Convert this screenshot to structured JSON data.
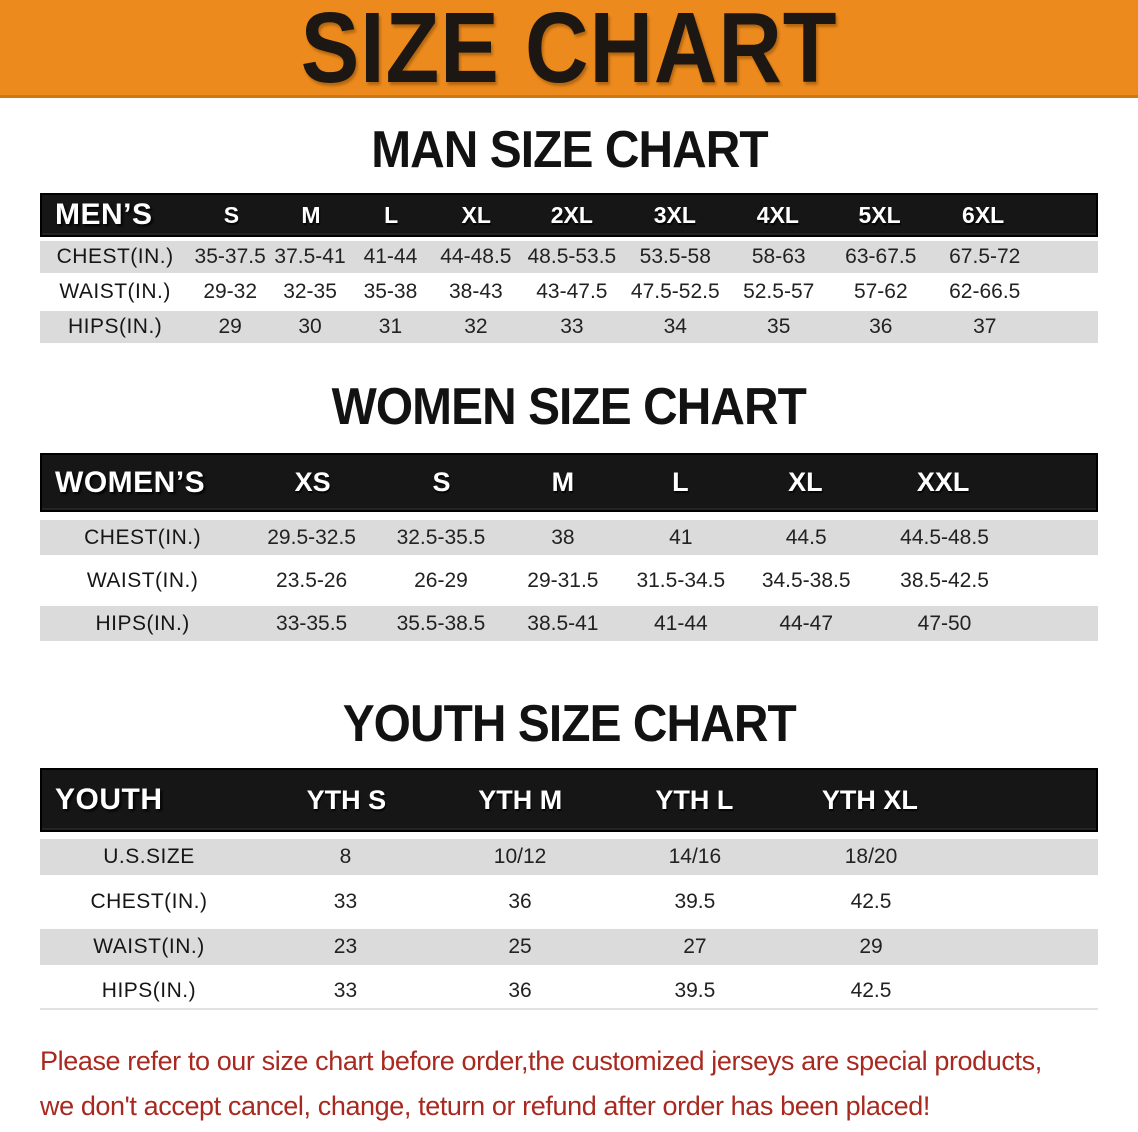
{
  "banner": {
    "title": "SIZE CHART"
  },
  "colors": {
    "banner_orange": "#EC8A1E",
    "header_black": "#161616",
    "row_gray": "#DBDBDB",
    "notice_red": "#A8291F"
  },
  "charts": [
    {
      "id": "men",
      "heading": "MAN SIZE CHART",
      "corner_label": "MEN’S",
      "columns": [
        "S",
        "M",
        "L",
        "XL",
        "2XL",
        "3XL",
        "4XL",
        "5XL",
        "6XL"
      ],
      "rows": [
        {
          "label": "CHEST(IN.)",
          "values": [
            "35-37.5",
            "37.5-41",
            "41-44",
            "44-48.5",
            "48.5-53.5",
            "53.5-58",
            "58-63",
            "63-67.5",
            "67.5-72"
          ]
        },
        {
          "label": "WAIST(IN.)",
          "values": [
            "29-32",
            "32-35",
            "35-38",
            "38-43",
            "43-47.5",
            "47.5-52.5",
            "52.5-57",
            "57-62",
            "62-66.5"
          ]
        },
        {
          "label": "HIPS(IN.)",
          "values": [
            "29",
            "30",
            "31",
            "32",
            "33",
            "34",
            "35",
            "36",
            "37"
          ]
        }
      ]
    },
    {
      "id": "women",
      "heading": "WOMEN SIZE CHART",
      "corner_label": "WOMEN’S",
      "columns": [
        "XS",
        "S",
        "M",
        "L",
        "XL",
        "XXL"
      ],
      "rows": [
        {
          "label": "CHEST(IN.)",
          "values": [
            "29.5-32.5",
            "32.5-35.5",
            "38",
            "41",
            "44.5",
            "44.5-48.5"
          ]
        },
        {
          "label": "WAIST(IN.)",
          "values": [
            "23.5-26",
            "26-29",
            "29-31.5",
            "31.5-34.5",
            "34.5-38.5",
            "38.5-42.5"
          ]
        },
        {
          "label": "HIPS(IN.)",
          "values": [
            "33-35.5",
            "35.5-38.5",
            "38.5-41",
            "41-44",
            "44-47",
            "47-50"
          ]
        }
      ]
    },
    {
      "id": "youth",
      "heading": "YOUTH SIZE CHART",
      "corner_label": "YOUTH",
      "columns": [
        "YTH S",
        "YTH M",
        "YTH L",
        "YTH XL"
      ],
      "rows": [
        {
          "label": "U.S.SIZE",
          "values": [
            "8",
            "10/12",
            "14/16",
            "18/20"
          ]
        },
        {
          "label": "CHEST(IN.)",
          "values": [
            "33",
            "36",
            "39.5",
            "42.5"
          ]
        },
        {
          "label": "WAIST(IN.)",
          "values": [
            "23",
            "25",
            "27",
            "29"
          ]
        },
        {
          "label": "HIPS(IN.)",
          "values": [
            "33",
            "36",
            "39.5",
            "42.5"
          ]
        }
      ]
    }
  ],
  "notice": {
    "line1": "Please refer to our size chart before order,the customized jerseys are special products,",
    "line2": "we don't accept cancel, change, teturn or refund after order has been placed!"
  }
}
